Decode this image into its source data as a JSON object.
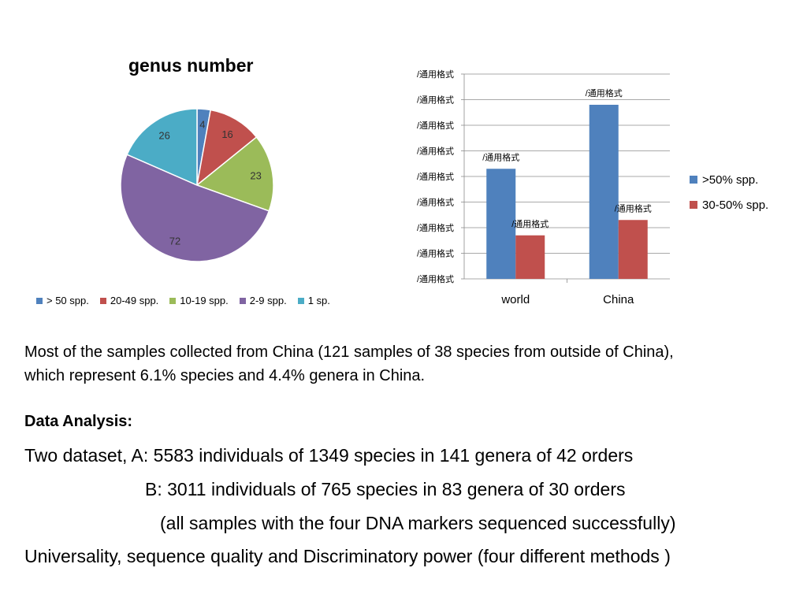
{
  "chart_data": [
    {
      "type": "pie",
      "title": "genus number",
      "categories": [
        "> 50 spp.",
        "20-49 spp.",
        "10-19 spp.",
        "2-9 spp.",
        "1 sp."
      ],
      "values": [
        4,
        16,
        23,
        72,
        26
      ],
      "colors": [
        "#4F81BD",
        "#C0504D",
        "#9BBB59",
        "#8064A2",
        "#4BACC6"
      ],
      "legend_position": "bottom"
    },
    {
      "type": "bar",
      "categories": [
        "world",
        "China"
      ],
      "series": [
        {
          "name": ">50% spp.",
          "values": [
            4.3,
            6.8
          ],
          "color": "#4F81BD"
        },
        {
          "name": "30-50% spp.",
          "values": [
            1.7,
            2.3
          ],
          "color": "#C0504D"
        }
      ],
      "ylim": [
        0,
        8
      ],
      "ytick_labels": [
        "/通用格式",
        "/通用格式",
        "/通用格式",
        "/通用格式",
        "/通用格式",
        "/通用格式",
        "/通用格式",
        "/通用格式",
        "/通用格式"
      ],
      "data_labels": [
        [
          "/通用格式",
          "/通用格式"
        ],
        [
          "/通用格式",
          "/通用格式"
        ]
      ],
      "grid": true,
      "legend_position": "right"
    }
  ],
  "text": {
    "para1_line1": "Most of the samples collected from China (121 samples of 38 species from outside of China),",
    "para1_line2": "which represent 6.1% species and 4.4% genera in China.",
    "analysis_title": "Data Analysis:",
    "line_a": "Two dataset, A: 5583 individuals of 1349 species in 141 genera of 42 orders",
    "line_b": "B: 3011 individuals of 765 species in 83 genera of 30 orders",
    "line_c": "(all samples with the four  DNA markers sequenced successfully)",
    "line_d": "Universality, sequence quality and Discriminatory power (four different methods )"
  }
}
